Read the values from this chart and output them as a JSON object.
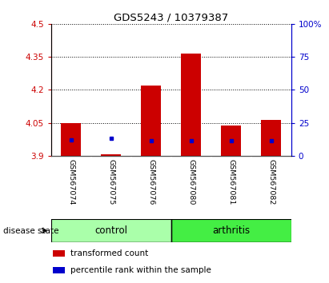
{
  "title": "GDS5243 / 10379387",
  "samples": [
    "GSM567074",
    "GSM567075",
    "GSM567076",
    "GSM567080",
    "GSM567081",
    "GSM567082"
  ],
  "red_values": [
    4.047,
    3.905,
    4.218,
    4.365,
    4.038,
    4.063
  ],
  "blue_pct": [
    12.0,
    13.0,
    11.5,
    11.5,
    11.5,
    11.5
  ],
  "ymin": 3.9,
  "ymax": 4.5,
  "yticks_left": [
    3.9,
    4.05,
    4.2,
    4.35,
    4.5
  ],
  "yticks_right": [
    0,
    25,
    50,
    75,
    100
  ],
  "left_axis_color": "#cc0000",
  "right_axis_color": "#0000cc",
  "bar_color": "#cc0000",
  "dot_color": "#0000cc",
  "label_bg": "#c8c8c8",
  "control_color": "#aaffaa",
  "arthritis_color": "#44ee44",
  "disease_state_label": "disease state",
  "legend_red": "transformed count",
  "legend_blue": "percentile rank within the sample",
  "ctrl_n": 3,
  "arth_n": 3
}
